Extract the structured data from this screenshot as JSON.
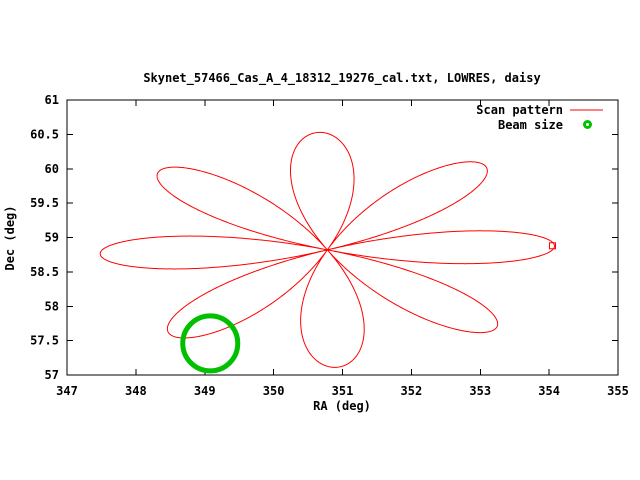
{
  "colors": {
    "scan": "#ff0000",
    "beam": "#00c000",
    "frame": "#000000",
    "background": "#ffffff"
  },
  "chart_data": {
    "type": "line",
    "title": "Skynet_57466_Cas_A_4_18312_19276_cal.txt, LOWRES, daisy",
    "xlabel": "RA (deg)",
    "ylabel": "Dec (deg)",
    "xlim": [
      347,
      355
    ],
    "ylim": [
      57,
      61
    ],
    "x_ticks": [
      347,
      348,
      349,
      350,
      351,
      352,
      353,
      354,
      355
    ],
    "y_ticks": [
      57,
      57.5,
      58,
      58.5,
      59,
      59.5,
      60,
      60.5,
      61
    ],
    "grid": false,
    "legend_position": "top-right-inside",
    "series": [
      {
        "name": "Scan pattern",
        "kind": "daisy_rose",
        "color": "#ff0000",
        "center": {
          "ra": 350.78,
          "dec": 58.82
        },
        "petals": 8,
        "radius_ra_deg": 3.3,
        "radius_dec_deg": 1.71,
        "rotation_deg": 2,
        "start_hook_at_tip": true
      },
      {
        "name": "Beam size",
        "kind": "circle",
        "color": "#00c000",
        "center": {
          "ra": 349.08,
          "dec": 57.46
        },
        "radius_deg": 0.4
      }
    ]
  }
}
